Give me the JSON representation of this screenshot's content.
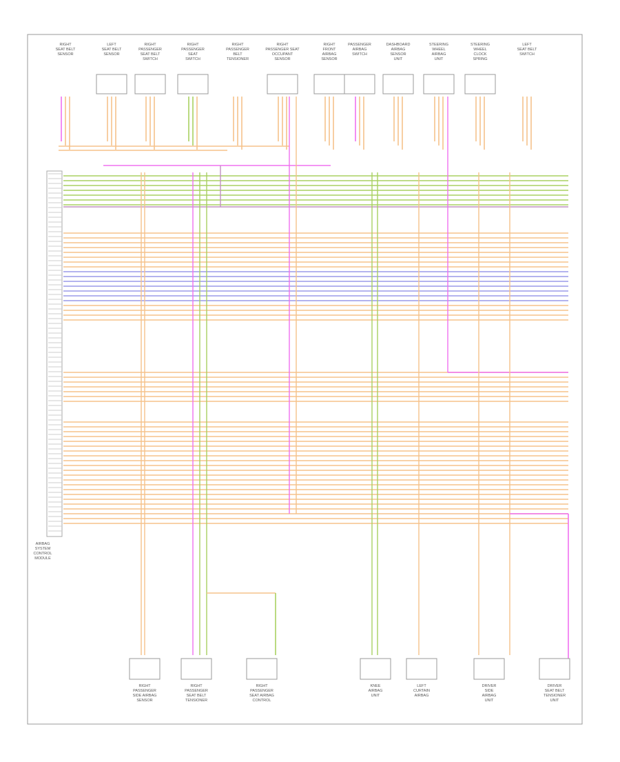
{
  "diagram": {
    "connector_label": [
      "AIRBAG",
      "SYSTEM",
      "CONTROL",
      "MODULE"
    ],
    "top_components": [
      {
        "lines": [
          "RIGHT",
          "SEAT BELT",
          "SENSOR"
        ]
      },
      {
        "lines": [
          "LEFT",
          "SEAT BELT",
          "SENSOR"
        ]
      },
      {
        "lines": [
          "RIGHT",
          "PASSENGER",
          "SEAT BELT",
          "SWITCH"
        ]
      },
      {
        "lines": [
          "RIGHT",
          "PASSENGER",
          "SEAT",
          "SWITCH"
        ]
      },
      {
        "lines": [
          "RIGHT",
          "PASSENGER",
          "BELT",
          "TENSIONER"
        ]
      },
      {
        "lines": [
          "RIGHT",
          "PASSENGER SEAT",
          "OCCUPANT",
          "SENSOR"
        ]
      },
      {
        "lines": [
          "RIGHT",
          "FRONT",
          "AIRBAG",
          "SENSOR"
        ]
      },
      {
        "lines": [
          "PASSENGER",
          "AIRBAG",
          "SWITCH"
        ]
      },
      {
        "lines": [
          "DASHBOARD",
          "AIRBAG",
          "SENSOR",
          "UNIT"
        ]
      },
      {
        "lines": [
          "STEERING",
          "WHEEL",
          "AIRBAG",
          "UNIT"
        ]
      },
      {
        "lines": [
          "STEERING",
          "WHEEL",
          "CLOCK",
          "SPRING"
        ]
      },
      {
        "lines": [
          "LEFT",
          "SEAT BELT",
          "SWITCH"
        ]
      }
    ],
    "bottom_components": [
      {
        "lines": [
          "RIGHT",
          "PASSENGER",
          "SIDE AIRBAG",
          "SENSOR"
        ]
      },
      {
        "lines": [
          "RIGHT",
          "PASSENGER",
          "SEAT BELT",
          "TENSIONER"
        ]
      },
      {
        "lines": [
          "RIGHT",
          "PASSENGER",
          "SEAT AIRBAG",
          "CONTROL"
        ]
      },
      {
        "lines": [
          "KNEE",
          "AIRBAG",
          "UNIT"
        ]
      },
      {
        "lines": [
          "LEFT",
          "CURTAIN",
          "AIRBAG"
        ]
      },
      {
        "lines": [
          "DRIVER",
          "SIDE",
          "AIRBAG",
          "UNIT"
        ]
      },
      {
        "lines": [
          "DRIVER",
          "SEAT BELT",
          "TENSIONER",
          "UNIT"
        ]
      }
    ]
  }
}
